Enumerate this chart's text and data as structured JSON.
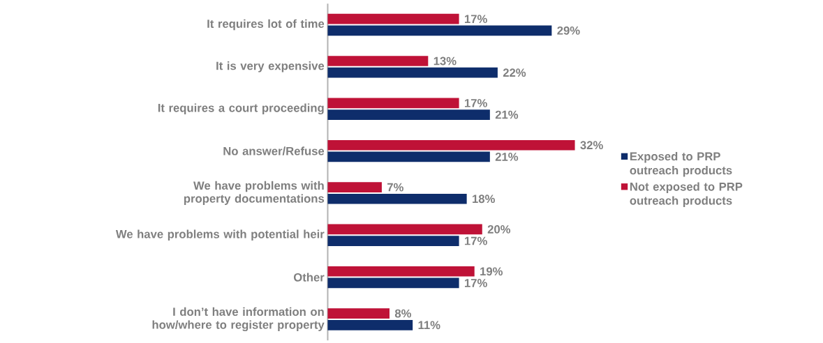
{
  "chart_data": {
    "type": "bar",
    "orientation": "horizontal",
    "legend": "right",
    "categories": [
      "It requires lot of time",
      "It is very expensive",
      "It requires a court proceeding",
      "No answer/Refuse",
      "We have problems with property documentations",
      "We have problems with potential heir",
      "Other",
      "I don’t have information on how/where to register property"
    ],
    "series": [
      {
        "name": "Exposed to PRP outreach products",
        "color": "#0e2d6b",
        "values": [
          29,
          22,
          21,
          21,
          18,
          17,
          17,
          11
        ],
        "value_labels": [
          "29%",
          "22%",
          "21%",
          "21%",
          "18%",
          "17%",
          "17%",
          "11%"
        ]
      },
      {
        "name": "Not exposed to PRP outreach products",
        "color": "#bf1237",
        "values": [
          17,
          13,
          17,
          32,
          7,
          20,
          19,
          8
        ],
        "value_labels": [
          "17%",
          "13%",
          "17%",
          "32%",
          "7%",
          "20%",
          "19%",
          "8%"
        ]
      }
    ]
  }
}
